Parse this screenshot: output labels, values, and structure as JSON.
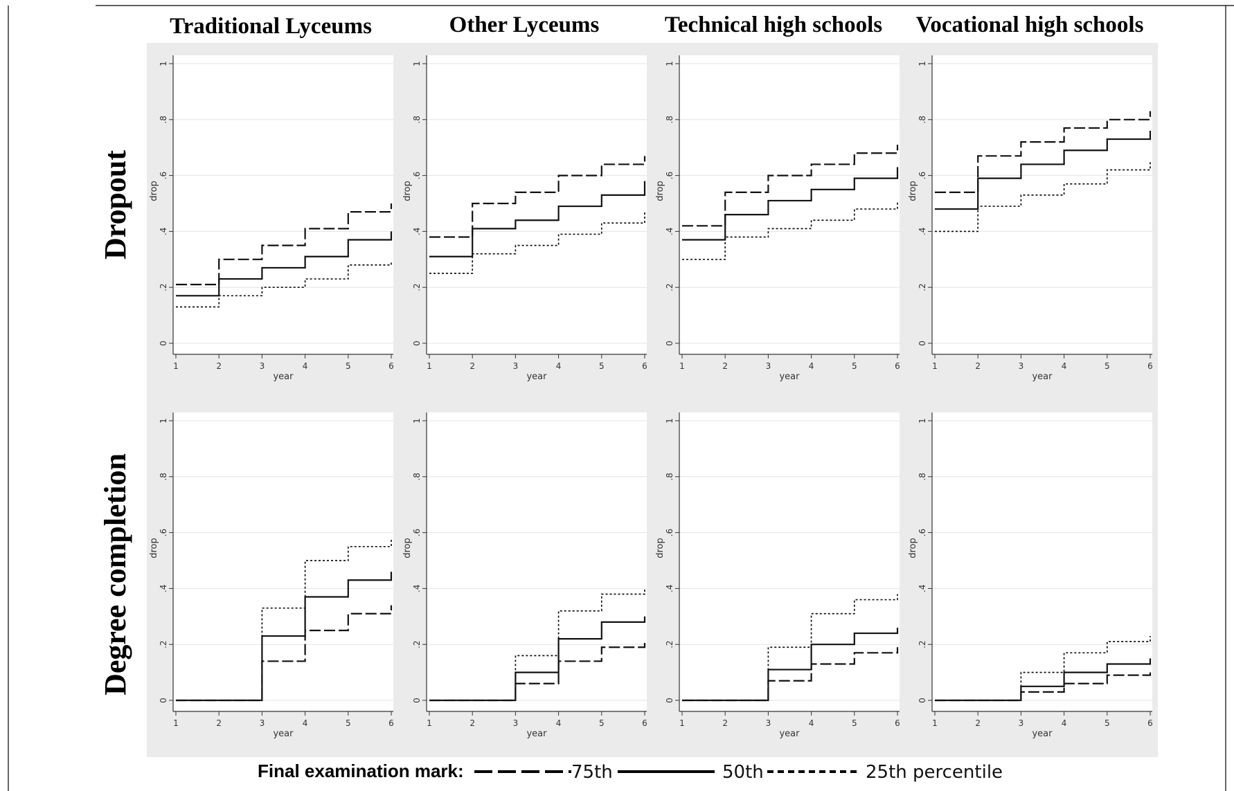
{
  "columns": [
    "Traditional Lyceums",
    "Other Lyceums",
    "Technical high schools",
    "Vocational high schools"
  ],
  "rows": [
    "Dropout",
    "Degree completion"
  ],
  "legend": {
    "title": "Final examination mark:",
    "items": [
      {
        "label": "75th",
        "style": "dashed"
      },
      {
        "label": "50th",
        "style": "solid"
      },
      {
        "label": "25th percentile",
        "style": "dotted"
      }
    ]
  },
  "chart_data": [
    {
      "type": "line",
      "step": true,
      "row": "Dropout",
      "column": "Traditional Lyceums",
      "xlabel": "year",
      "ylabel": "drop",
      "xlim": [
        1,
        6
      ],
      "ylim": [
        0,
        1
      ],
      "xticks": [
        "1",
        "2",
        "3",
        "4",
        "5",
        "6"
      ],
      "yticks": [
        "0",
        ".2",
        ".4",
        ".6",
        ".8",
        "1"
      ],
      "grid": true,
      "x": [
        1,
        2,
        3,
        4,
        5,
        6
      ],
      "series": [
        {
          "values": [
            0.21,
            0.3,
            0.35,
            0.41,
            0.47,
            0.5
          ]
        },
        {
          "values": [
            0.17,
            0.23,
            0.27,
            0.31,
            0.37,
            0.4
          ]
        },
        {
          "values": [
            0.13,
            0.17,
            0.2,
            0.23,
            0.28,
            0.29
          ]
        }
      ]
    },
    {
      "type": "line",
      "step": true,
      "row": "Dropout",
      "column": "Other Lyceums",
      "xlabel": "year",
      "ylabel": "drop",
      "xlim": [
        1,
        6
      ],
      "ylim": [
        0,
        1
      ],
      "xticks": [
        "1",
        "2",
        "3",
        "4",
        "5",
        "6"
      ],
      "yticks": [
        "0",
        ".2",
        ".4",
        ".6",
        ".8",
        "1"
      ],
      "grid": true,
      "x": [
        1,
        2,
        3,
        4,
        5,
        6
      ],
      "series": [
        {
          "values": [
            0.38,
            0.5,
            0.54,
            0.6,
            0.64,
            0.67
          ]
        },
        {
          "values": [
            0.31,
            0.41,
            0.44,
            0.49,
            0.53,
            0.58
          ]
        },
        {
          "values": [
            0.25,
            0.32,
            0.35,
            0.39,
            0.43,
            0.47
          ]
        }
      ]
    },
    {
      "type": "line",
      "step": true,
      "row": "Dropout",
      "column": "Technical high schools",
      "xlabel": "year",
      "ylabel": "drop",
      "xlim": [
        1,
        6
      ],
      "ylim": [
        0,
        1
      ],
      "xticks": [
        "1",
        "2",
        "3",
        "4",
        "5",
        "6"
      ],
      "yticks": [
        "0",
        ".2",
        ".4",
        ".6",
        ".8",
        "1"
      ],
      "grid": true,
      "x": [
        1,
        2,
        3,
        4,
        5,
        6
      ],
      "series": [
        {
          "values": [
            0.42,
            0.54,
            0.6,
            0.64,
            0.68,
            0.71
          ]
        },
        {
          "values": [
            0.37,
            0.46,
            0.51,
            0.55,
            0.59,
            0.63
          ]
        },
        {
          "values": [
            0.3,
            0.38,
            0.41,
            0.44,
            0.48,
            0.51
          ]
        }
      ]
    },
    {
      "type": "line",
      "step": true,
      "row": "Dropout",
      "column": "Vocational high schools",
      "xlabel": "year",
      "ylabel": "drop",
      "xlim": [
        1,
        6
      ],
      "ylim": [
        0,
        1
      ],
      "xticks": [
        "1",
        "2",
        "3",
        "4",
        "5",
        "6"
      ],
      "yticks": [
        "0",
        ".2",
        ".4",
        ".6",
        ".8",
        "1"
      ],
      "grid": true,
      "x": [
        1,
        2,
        3,
        4,
        5,
        6
      ],
      "series": [
        {
          "values": [
            0.54,
            0.67,
            0.72,
            0.77,
            0.8,
            0.83
          ]
        },
        {
          "values": [
            0.48,
            0.59,
            0.64,
            0.69,
            0.73,
            0.76
          ]
        },
        {
          "values": [
            0.4,
            0.49,
            0.53,
            0.57,
            0.62,
            0.65
          ]
        }
      ]
    },
    {
      "type": "line",
      "step": true,
      "row": "Degree completion",
      "column": "Traditional Lyceums",
      "xlabel": "year",
      "ylabel": "drop",
      "xlim": [
        1,
        6
      ],
      "ylim": [
        0,
        1
      ],
      "xticks": [
        "1",
        "2",
        "3",
        "4",
        "5",
        "6"
      ],
      "yticks": [
        "0",
        ".2",
        ".4",
        ".6",
        ".8",
        "1"
      ],
      "grid": true,
      "x": [
        1,
        2,
        3,
        4,
        5,
        6
      ],
      "series": [
        {
          "values": [
            0,
            0,
            0.14,
            0.25,
            0.31,
            0.34
          ]
        },
        {
          "values": [
            0,
            0,
            0.23,
            0.37,
            0.43,
            0.46
          ]
        },
        {
          "values": [
            0,
            0,
            0.33,
            0.5,
            0.55,
            0.58
          ]
        }
      ]
    },
    {
      "type": "line",
      "step": true,
      "row": "Degree completion",
      "column": "Other Lyceums",
      "xlabel": "year",
      "ylabel": "drop",
      "xlim": [
        1,
        6
      ],
      "ylim": [
        0,
        1
      ],
      "xticks": [
        "1",
        "2",
        "3",
        "4",
        "5",
        "6"
      ],
      "yticks": [
        "0",
        ".2",
        ".4",
        ".6",
        ".8",
        "1"
      ],
      "grid": true,
      "x": [
        1,
        2,
        3,
        4,
        5,
        6
      ],
      "series": [
        {
          "values": [
            0,
            0,
            0.06,
            0.14,
            0.19,
            0.21
          ]
        },
        {
          "values": [
            0,
            0,
            0.1,
            0.22,
            0.28,
            0.3
          ]
        },
        {
          "values": [
            0,
            0,
            0.16,
            0.32,
            0.38,
            0.4
          ]
        }
      ]
    },
    {
      "type": "line",
      "step": true,
      "row": "Degree completion",
      "column": "Technical high schools",
      "xlabel": "year",
      "ylabel": "drop",
      "xlim": [
        1,
        6
      ],
      "ylim": [
        0,
        1
      ],
      "xticks": [
        "1",
        "2",
        "3",
        "4",
        "5",
        "6"
      ],
      "yticks": [
        "0",
        ".2",
        ".4",
        ".6",
        ".8",
        "1"
      ],
      "grid": true,
      "x": [
        1,
        2,
        3,
        4,
        5,
        6
      ],
      "series": [
        {
          "values": [
            0,
            0,
            0.07,
            0.13,
            0.17,
            0.19
          ]
        },
        {
          "values": [
            0,
            0,
            0.11,
            0.2,
            0.24,
            0.26
          ]
        },
        {
          "values": [
            0,
            0,
            0.19,
            0.31,
            0.36,
            0.38
          ]
        }
      ]
    },
    {
      "type": "line",
      "step": true,
      "row": "Degree completion",
      "column": "Vocational high schools",
      "xlabel": "year",
      "ylabel": "drop",
      "xlim": [
        1,
        6
      ],
      "ylim": [
        0,
        1
      ],
      "xticks": [
        "1",
        "2",
        "3",
        "4",
        "5",
        "6"
      ],
      "yticks": [
        "0",
        ".2",
        ".4",
        ".6",
        ".8",
        "1"
      ],
      "grid": true,
      "x": [
        1,
        2,
        3,
        4,
        5,
        6
      ],
      "series": [
        {
          "values": [
            0,
            0,
            0.03,
            0.06,
            0.09,
            0.1
          ]
        },
        {
          "values": [
            0,
            0,
            0.05,
            0.1,
            0.13,
            0.15
          ]
        },
        {
          "values": [
            0,
            0,
            0.1,
            0.17,
            0.21,
            0.23
          ]
        }
      ]
    }
  ]
}
